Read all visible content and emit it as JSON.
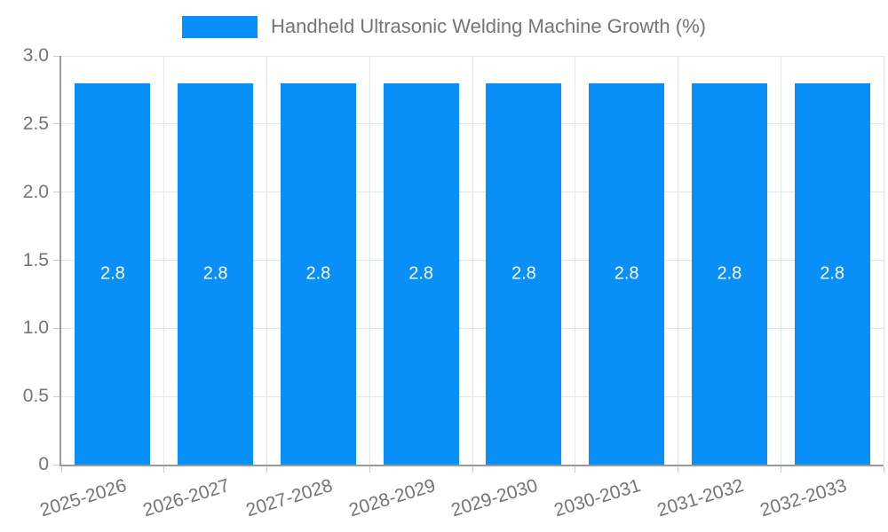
{
  "legend": {
    "label": "Handheld Ultrasonic Welding Machine Growth (%)"
  },
  "colors": {
    "bar": "#0890f8",
    "bar_label": "#ffffff",
    "grid": "#e6e6e6",
    "axis_line": "#9a9a9a",
    "tick_mark": "#c8c8c8",
    "tick_text": "#757575",
    "legend_text": "#757575",
    "background": "#ffffff"
  },
  "chart_data": {
    "type": "bar",
    "title": "Handheld Ultrasonic Welding Machine Growth (%)",
    "categories": [
      "2025-2026",
      "2026-2027",
      "2027-2028",
      "2028-2029",
      "2029-2030",
      "2030-2031",
      "2031-2032",
      "2032-2033"
    ],
    "values": [
      2.8,
      2.8,
      2.8,
      2.8,
      2.8,
      2.8,
      2.8,
      2.8
    ],
    "data_labels": [
      "2.8",
      "2.8",
      "2.8",
      "2.8",
      "2.8",
      "2.8",
      "2.8",
      "2.8"
    ],
    "xlabel": "",
    "ylabel": "",
    "ylim": [
      0,
      3.0
    ],
    "yticks": [
      0,
      0.5,
      1.0,
      1.5,
      2.0,
      2.5,
      3.0
    ],
    "ytick_labels": [
      "0",
      "0.5",
      "1.0",
      "1.5",
      "2.0",
      "2.5",
      "3.0"
    ],
    "grid": true,
    "legend_position": "top",
    "xtick_rotation_deg": -17
  }
}
